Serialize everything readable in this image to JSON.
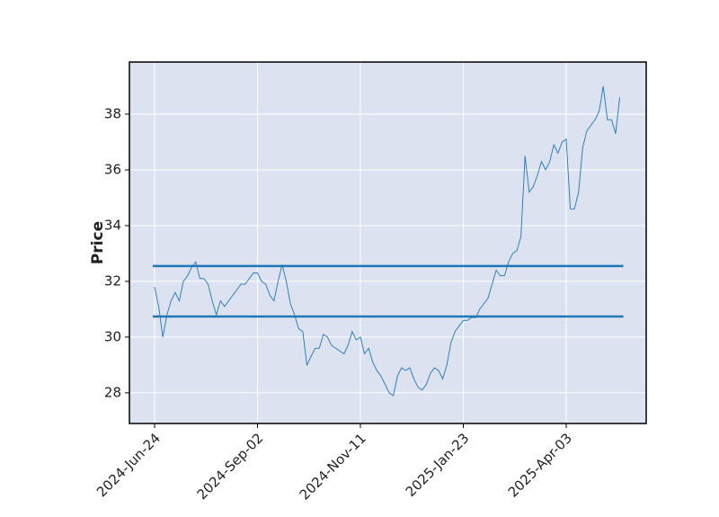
{
  "chart_data": {
    "type": "line",
    "ylabel": "Price",
    "categories": [
      "2024-Jun-24",
      null,
      null,
      null,
      null,
      null,
      null,
      null,
      null,
      null,
      null,
      null,
      null,
      null,
      null,
      null,
      null,
      null,
      null,
      null,
      null,
      null,
      null,
      null,
      null,
      "2024-Sep-02",
      null,
      null,
      null,
      null,
      null,
      null,
      null,
      null,
      null,
      null,
      null,
      null,
      null,
      null,
      null,
      null,
      null,
      null,
      null,
      null,
      null,
      null,
      null,
      null,
      "2024-Nov-11",
      null,
      null,
      null,
      null,
      null,
      null,
      null,
      null,
      null,
      null,
      null,
      null,
      null,
      null,
      null,
      null,
      null,
      null,
      null,
      null,
      null,
      null,
      null,
      null,
      "2025-Jan-23",
      null,
      null,
      null,
      null,
      null,
      null,
      null,
      null,
      null,
      null,
      null,
      null,
      null,
      null,
      null,
      null,
      null,
      null,
      null,
      null,
      null,
      null,
      null,
      null,
      "2025-Apr-03",
      null,
      null,
      null,
      null,
      null,
      null,
      null,
      null,
      null,
      null,
      null,
      null,
      null
    ],
    "series": [
      {
        "color": "#1f77b4",
        "values": [
          31.8,
          31.1,
          30.0,
          30.8,
          31.3,
          31.6,
          31.3,
          32.0,
          32.2,
          32.5,
          32.7,
          32.1,
          32.1,
          31.9,
          31.3,
          30.8,
          31.3,
          31.1,
          31.3,
          31.5,
          31.7,
          31.9,
          31.9,
          32.1,
          32.3,
          32.3,
          32.0,
          31.9,
          31.5,
          31.3,
          32.0,
          32.6,
          32.0,
          31.2,
          30.8,
          30.3,
          30.2,
          29.0,
          29.3,
          29.6,
          29.6,
          30.1,
          30.0,
          29.7,
          29.6,
          29.5,
          29.4,
          29.7,
          30.2,
          29.9,
          30.0,
          29.4,
          29.6,
          29.1,
          28.8,
          28.6,
          28.3,
          28.0,
          27.9,
          28.6,
          28.9,
          28.8,
          28.9,
          28.5,
          28.2,
          28.1,
          28.3,
          28.7,
          28.9,
          28.8,
          28.5,
          29.0,
          29.8,
          30.2,
          30.4,
          30.6,
          30.6,
          30.7,
          30.7,
          31.0,
          31.2,
          31.4,
          31.9,
          32.4,
          32.2,
          32.2,
          32.7,
          33.0,
          33.1,
          33.6,
          36.5,
          35.2,
          35.4,
          35.8,
          36.3,
          36.0,
          36.3,
          36.9,
          36.6,
          37.0,
          37.1,
          34.6,
          34.6,
          35.2,
          36.8,
          37.4,
          37.6,
          37.8,
          38.1,
          39.0,
          37.8,
          37.8,
          37.3,
          38.6
        ]
      }
    ],
    "hlines": {
      "values": [
        32.55,
        30.74
      ],
      "color": "#1f77b4"
    },
    "ylim": [
      26.9,
      39.87
    ],
    "yticks": [
      28,
      30,
      32,
      34,
      36,
      38
    ],
    "grid": true
  }
}
